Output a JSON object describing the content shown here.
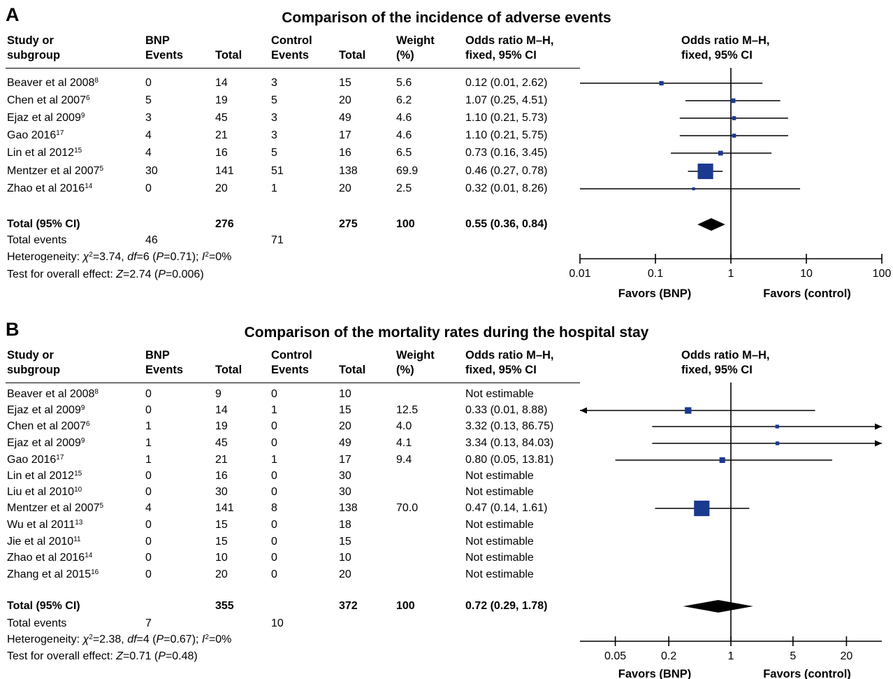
{
  "headers": {
    "study": [
      "Study or",
      "subgroup"
    ],
    "bnp": [
      "BNP",
      "Events"
    ],
    "total": "Total",
    "control": [
      "Control",
      "Events"
    ],
    "total2": "Total",
    "weight": [
      "Weight",
      "(%)"
    ],
    "or": [
      "Odds ratio M–H,",
      "fixed, 95% CI"
    ],
    "plot_or": [
      "Odds ratio M–H,",
      "fixed, 95% CI"
    ]
  },
  "panels": [
    {
      "letter": "A",
      "title": "Comparison of the incidence of adverse events",
      "rows": [
        {
          "study": "Beaver et al 2008",
          "ref": "8",
          "bnp_events": "0",
          "bnp_total": "14",
          "ctrl_events": "3",
          "ctrl_total": "15",
          "weight": "5.6",
          "or_text": "0.12 (0.01, 2.62)"
        },
        {
          "study": "Chen et al 2007",
          "ref": "6",
          "bnp_events": "5",
          "bnp_total": "19",
          "ctrl_events": "5",
          "ctrl_total": "20",
          "weight": "6.2",
          "or_text": "1.07 (0.25, 4.51)"
        },
        {
          "study": "Ejaz et al 2009",
          "ref": "9",
          "bnp_events": "3",
          "bnp_total": "45",
          "ctrl_events": "3",
          "ctrl_total": "49",
          "weight": "4.6",
          "or_text": "1.10 (0.21, 5.73)"
        },
        {
          "study": "Gao 2016",
          "ref": "17",
          "bnp_events": "4",
          "bnp_total": "21",
          "ctrl_events": "3",
          "ctrl_total": "17",
          "weight": "4.6",
          "or_text": "1.10 (0.21, 5.75)"
        },
        {
          "study": "Lin et al 2012",
          "ref": "15",
          "bnp_events": "4",
          "bnp_total": "16",
          "ctrl_events": "5",
          "ctrl_total": "16",
          "weight": "6.5",
          "or_text": "0.73 (0.16, 3.45)"
        },
        {
          "study": "Mentzer et al 2007",
          "ref": "5",
          "bnp_events": "30",
          "bnp_total": "141",
          "ctrl_events": "51",
          "ctrl_total": "138",
          "weight": "69.9",
          "or_text": "0.46 (0.27, 0.78)"
        },
        {
          "study": "Zhao et al 2016",
          "ref": "14",
          "bnp_events": "0",
          "bnp_total": "20",
          "ctrl_events": "1",
          "ctrl_total": "20",
          "weight": "2.5",
          "or_text": "0.32 (0.01, 8.26)"
        }
      ],
      "total": {
        "label": "Total (95% CI)",
        "bnp_total": "276",
        "ctrl_total": "275",
        "weight": "100",
        "or_text": "0.55 (0.36, 0.84)"
      },
      "total_events": {
        "label": "Total events",
        "bnp": "46",
        "ctrl": "71"
      },
      "heterogeneity": {
        "prefix": "Heterogeneity: ",
        "chi2": "χ",
        "chi2_val": "=3.74, ",
        "df": "df",
        "df_val": "=6 (",
        "p": "P",
        "p_val": "=0.71); ",
        "i2": "I",
        "i2_val": "=0%"
      },
      "overall": {
        "prefix": "Test for overall effect: ",
        "z": "Z",
        "z_val": "=2.74 (",
        "p": "P",
        "p_val": "=0.006)"
      },
      "favors_left": "Favors (BNP)",
      "favors_right": "Favors (control)"
    },
    {
      "letter": "B",
      "title": "Comparison of the mortality rates during the hospital stay",
      "rows": [
        {
          "study": "Beaver et al 2008",
          "ref": "8",
          "bnp_events": "0",
          "bnp_total": "9",
          "ctrl_events": "0",
          "ctrl_total": "10",
          "weight": "",
          "or_text": "Not estimable"
        },
        {
          "study": "Ejaz et al 2009",
          "ref": "9",
          "bnp_events": "0",
          "bnp_total": "14",
          "ctrl_events": "1",
          "ctrl_total": "15",
          "weight": "12.5",
          "or_text": "0.33 (0.01, 8.88)"
        },
        {
          "study": "Chen et al 2007",
          "ref": "6",
          "bnp_events": "1",
          "bnp_total": "19",
          "ctrl_events": "0",
          "ctrl_total": "20",
          "weight": "4.0",
          "or_text": "3.32 (0.13, 86.75)"
        },
        {
          "study": "Ejaz et al 2009",
          "ref": "9",
          "bnp_events": "1",
          "bnp_total": "45",
          "ctrl_events": "0",
          "ctrl_total": "49",
          "weight": "4.1",
          "or_text": "3.34 (0.13, 84.03)"
        },
        {
          "study": "Gao 2016",
          "ref": "17",
          "bnp_events": "1",
          "bnp_total": "21",
          "ctrl_events": "1",
          "ctrl_total": "17",
          "weight": "9.4",
          "or_text": "0.80 (0.05, 13.81)"
        },
        {
          "study": "Lin et al 2012",
          "ref": "15",
          "bnp_events": "0",
          "bnp_total": "16",
          "ctrl_events": "0",
          "ctrl_total": "30",
          "weight": "",
          "or_text": "Not estimable"
        },
        {
          "study": "Liu et al 2010",
          "ref": "10",
          "bnp_events": "0",
          "bnp_total": "30",
          "ctrl_events": "0",
          "ctrl_total": "30",
          "weight": "",
          "or_text": "Not estimable"
        },
        {
          "study": "Mentzer et al 2007",
          "ref": "5",
          "bnp_events": "4",
          "bnp_total": "141",
          "ctrl_events": "8",
          "ctrl_total": "138",
          "weight": "70.0",
          "or_text": "0.47 (0.14, 1.61)"
        },
        {
          "study": "Wu et al 2011",
          "ref": "13",
          "bnp_events": "0",
          "bnp_total": "15",
          "ctrl_events": "0",
          "ctrl_total": "18",
          "weight": "",
          "or_text": "Not estimable"
        },
        {
          "study": "Jie et al 2010",
          "ref": "11",
          "bnp_events": "0",
          "bnp_total": "15",
          "ctrl_events": "0",
          "ctrl_total": "15",
          "weight": "",
          "or_text": "Not estimable"
        },
        {
          "study": "Zhao et al 2016",
          "ref": "14",
          "bnp_events": "0",
          "bnp_total": "10",
          "ctrl_events": "0",
          "ctrl_total": "10",
          "weight": "",
          "or_text": "Not estimable"
        },
        {
          "study": "Zhang et al 2015",
          "ref": "16",
          "bnp_events": "0",
          "bnp_total": "20",
          "ctrl_events": "0",
          "ctrl_total": "20",
          "weight": "",
          "or_text": "Not estimable"
        }
      ],
      "total": {
        "label": "Total (95% CI)",
        "bnp_total": "355",
        "ctrl_total": "372",
        "weight": "100",
        "or_text": "0.72 (0.29, 1.78)"
      },
      "total_events": {
        "label": "Total events",
        "bnp": "7",
        "ctrl": "10"
      },
      "heterogeneity": {
        "prefix": "Heterogeneity: ",
        "chi2": "χ",
        "chi2_val": "=2.38, ",
        "df": "df",
        "df_val": "=4 (",
        "p": "P",
        "p_val": "=0.67); ",
        "i2": "I",
        "i2_val": "=0%"
      },
      "overall": {
        "prefix": "Test for overall effect: ",
        "z": "Z",
        "z_val": "=0.71 (",
        "p": "P",
        "p_val": "=0.48)"
      },
      "favors_left": "Favors (BNP)",
      "favors_right": "Favors (control)"
    }
  ],
  "chart_data": [
    {
      "type": "forest",
      "scale": "log",
      "xlim": [
        0.01,
        100
      ],
      "ticks": [
        0.01,
        0.1,
        1,
        10,
        100
      ],
      "tick_labels": [
        "0.01",
        "0.1",
        "1",
        "10",
        "100"
      ],
      "null_line": 1,
      "marker_color": "#1a3a8f",
      "studies": [
        {
          "or": 0.12,
          "lo": 0.01,
          "hi": 2.62,
          "weight": 5.6
        },
        {
          "or": 1.07,
          "lo": 0.25,
          "hi": 4.51,
          "weight": 6.2
        },
        {
          "or": 1.1,
          "lo": 0.21,
          "hi": 5.73,
          "weight": 4.6
        },
        {
          "or": 1.1,
          "lo": 0.21,
          "hi": 5.75,
          "weight": 4.6
        },
        {
          "or": 0.73,
          "lo": 0.16,
          "hi": 3.45,
          "weight": 6.5
        },
        {
          "or": 0.46,
          "lo": 0.27,
          "hi": 0.78,
          "weight": 69.9
        },
        {
          "or": 0.32,
          "lo": 0.01,
          "hi": 8.26,
          "weight": 2.5
        }
      ],
      "pooled": {
        "or": 0.55,
        "lo": 0.36,
        "hi": 0.84
      }
    },
    {
      "type": "forest",
      "scale": "log",
      "xlim": [
        0.02,
        50
      ],
      "ticks": [
        0.05,
        0.2,
        1,
        5,
        20
      ],
      "tick_labels": [
        "0.05",
        "0.2",
        "1",
        "5",
        "20"
      ],
      "null_line": 1,
      "marker_color": "#1a3a8f",
      "studies": [
        null,
        {
          "or": 0.33,
          "lo": 0.01,
          "hi": 8.88,
          "weight": 12.5
        },
        {
          "or": 3.32,
          "lo": 0.13,
          "hi": 86.75,
          "weight": 4.0
        },
        {
          "or": 3.34,
          "lo": 0.13,
          "hi": 84.03,
          "weight": 4.1
        },
        {
          "or": 0.8,
          "lo": 0.05,
          "hi": 13.81,
          "weight": 9.4
        },
        null,
        null,
        {
          "or": 0.47,
          "lo": 0.14,
          "hi": 1.61,
          "weight": 70.0
        },
        null,
        null,
        null,
        null
      ],
      "pooled": {
        "or": 0.72,
        "lo": 0.29,
        "hi": 1.78
      }
    }
  ]
}
